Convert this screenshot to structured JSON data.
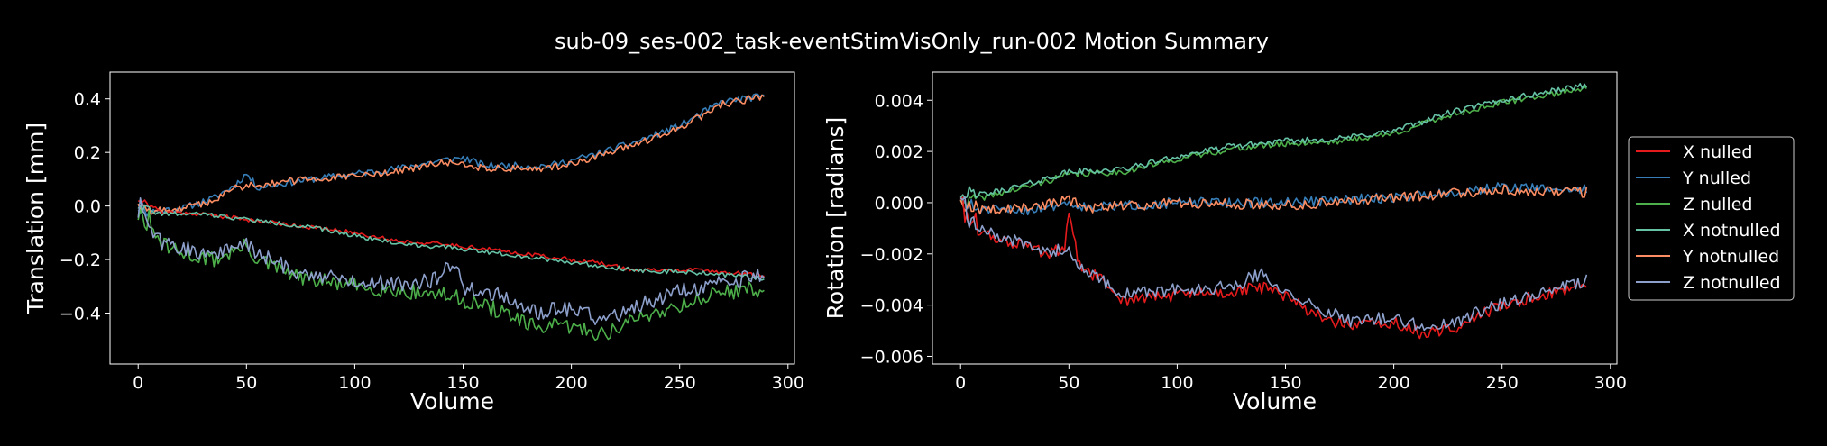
{
  "title": "sub-09_ses-002_task-eventStimVisOnly_run-002 Motion Summary",
  "colors": {
    "X nulled": "#e41a1c",
    "Y nulled": "#377eb8",
    "Z nulled": "#4daf4a",
    "X notnulled": "#66c2a5",
    "Y notnulled": "#fc8d62",
    "Z notnulled": "#8da0cb"
  },
  "chart_data": [
    {
      "type": "line",
      "xlabel": "Volume",
      "ylabel": "Translation [mm]",
      "xlim": [
        -13,
        303
      ],
      "ylim": [
        -0.59,
        0.5
      ],
      "xticks": [
        0,
        50,
        100,
        150,
        200,
        250,
        300
      ],
      "yticks": [
        -0.4,
        -0.2,
        0.0,
        0.2,
        0.4
      ],
      "yticklabels": [
        "−0.4",
        "−0.2",
        "0.0",
        "0.2",
        "0.4"
      ],
      "n_volumes": 290,
      "series": [
        {
          "name": "Y nulled",
          "noise": 0.013,
          "seed": 11,
          "values": [
            [
              0,
              0.0
            ],
            [
              5,
              -0.02
            ],
            [
              20,
              -0.01
            ],
            [
              35,
              0.03
            ],
            [
              45,
              0.08
            ],
            [
              50,
              0.12
            ],
            [
              55,
              0.07
            ],
            [
              80,
              0.1
            ],
            [
              100,
              0.12
            ],
            [
              120,
              0.14
            ],
            [
              140,
              0.17
            ],
            [
              150,
              0.18
            ],
            [
              160,
              0.15
            ],
            [
              190,
              0.15
            ],
            [
              210,
              0.19
            ],
            [
              230,
              0.24
            ],
            [
              250,
              0.3
            ],
            [
              270,
              0.39
            ],
            [
              289,
              0.41
            ]
          ]
        },
        {
          "name": "Y notnulled",
          "noise": 0.013,
          "seed": 12,
          "values": [
            [
              0,
              0.02
            ],
            [
              5,
              -0.02
            ],
            [
              20,
              -0.01
            ],
            [
              35,
              0.02
            ],
            [
              45,
              0.07
            ],
            [
              55,
              0.08
            ],
            [
              80,
              0.1
            ],
            [
              100,
              0.11
            ],
            [
              120,
              0.13
            ],
            [
              140,
              0.16
            ],
            [
              150,
              0.16
            ],
            [
              160,
              0.14
            ],
            [
              190,
              0.14
            ],
            [
              210,
              0.18
            ],
            [
              230,
              0.23
            ],
            [
              250,
              0.29
            ],
            [
              270,
              0.38
            ],
            [
              289,
              0.41
            ]
          ]
        },
        {
          "name": "X nulled",
          "noise": 0.008,
          "seed": 21,
          "values": [
            [
              0,
              0.03
            ],
            [
              10,
              -0.02
            ],
            [
              30,
              -0.03
            ],
            [
              50,
              -0.05
            ],
            [
              80,
              -0.08
            ],
            [
              100,
              -0.1
            ],
            [
              120,
              -0.13
            ],
            [
              150,
              -0.15
            ],
            [
              180,
              -0.18
            ],
            [
              210,
              -0.21
            ],
            [
              230,
              -0.24
            ],
            [
              260,
              -0.24
            ],
            [
              289,
              -0.26
            ]
          ]
        },
        {
          "name": "X notnulled",
          "noise": 0.008,
          "seed": 22,
          "values": [
            [
              0,
              0.0
            ],
            [
              10,
              -0.03
            ],
            [
              30,
              -0.03
            ],
            [
              50,
              -0.05
            ],
            [
              80,
              -0.08
            ],
            [
              100,
              -0.11
            ],
            [
              120,
              -0.14
            ],
            [
              150,
              -0.16
            ],
            [
              180,
              -0.19
            ],
            [
              210,
              -0.22
            ],
            [
              230,
              -0.24
            ],
            [
              260,
              -0.25
            ],
            [
              289,
              -0.27
            ]
          ]
        },
        {
          "name": "Z nulled",
          "noise": 0.03,
          "seed": 31,
          "values": [
            [
              0,
              0.0
            ],
            [
              5,
              -0.08
            ],
            [
              10,
              -0.14
            ],
            [
              20,
              -0.18
            ],
            [
              35,
              -0.2
            ],
            [
              50,
              -0.15
            ],
            [
              55,
              -0.2
            ],
            [
              75,
              -0.27
            ],
            [
              100,
              -0.3
            ],
            [
              125,
              -0.32
            ],
            [
              140,
              -0.33
            ],
            [
              150,
              -0.35
            ],
            [
              170,
              -0.4
            ],
            [
              180,
              -0.45
            ],
            [
              200,
              -0.45
            ],
            [
              215,
              -0.48
            ],
            [
              230,
              -0.42
            ],
            [
              250,
              -0.37
            ],
            [
              270,
              -0.32
            ],
            [
              289,
              -0.31
            ]
          ]
        },
        {
          "name": "Z notnulled",
          "noise": 0.03,
          "seed": 32,
          "values": [
            [
              0,
              0.0
            ],
            [
              5,
              -0.08
            ],
            [
              10,
              -0.13
            ],
            [
              20,
              -0.16
            ],
            [
              35,
              -0.18
            ],
            [
              50,
              -0.14
            ],
            [
              55,
              -0.18
            ],
            [
              75,
              -0.25
            ],
            [
              100,
              -0.28
            ],
            [
              125,
              -0.29
            ],
            [
              140,
              -0.27
            ],
            [
              145,
              -0.2
            ],
            [
              150,
              -0.3
            ],
            [
              170,
              -0.34
            ],
            [
              180,
              -0.4
            ],
            [
              200,
              -0.38
            ],
            [
              215,
              -0.43
            ],
            [
              230,
              -0.37
            ],
            [
              250,
              -0.32
            ],
            [
              270,
              -0.29
            ],
            [
              289,
              -0.25
            ]
          ]
        }
      ]
    },
    {
      "type": "line",
      "xlabel": "Volume",
      "ylabel": "Rotation [radians]",
      "xlim": [
        -13,
        303
      ],
      "ylim": [
        -0.0063,
        0.0051
      ],
      "xticks": [
        0,
        50,
        100,
        150,
        200,
        250,
        300
      ],
      "yticks": [
        -0.006,
        -0.004,
        -0.002,
        0.0,
        0.002,
        0.004
      ],
      "yticklabels": [
        "−0.006",
        "−0.004",
        "−0.002",
        "0.000",
        "0.002",
        "0.004"
      ],
      "n_volumes": 290,
      "series": [
        {
          "name": "Z nulled",
          "noise": 0.00012,
          "seed": 41,
          "values": [
            [
              0,
              0.0
            ],
            [
              10,
              0.0002
            ],
            [
              30,
              0.0006
            ],
            [
              50,
              0.0011
            ],
            [
              75,
              0.0012
            ],
            [
              100,
              0.0017
            ],
            [
              125,
              0.0021
            ],
            [
              150,
              0.0023
            ],
            [
              175,
              0.0024
            ],
            [
              200,
              0.0027
            ],
            [
              225,
              0.0034
            ],
            [
              250,
              0.0039
            ],
            [
              289,
              0.0045
            ]
          ]
        },
        {
          "name": "X notnulled",
          "noise": 0.00012,
          "seed": 42,
          "values": [
            [
              0,
              0.0004
            ],
            [
              10,
              0.0003
            ],
            [
              30,
              0.0007
            ],
            [
              50,
              0.0012
            ],
            [
              75,
              0.0013
            ],
            [
              100,
              0.0018
            ],
            [
              125,
              0.0022
            ],
            [
              150,
              0.0024
            ],
            [
              175,
              0.0025
            ],
            [
              200,
              0.0028
            ],
            [
              225,
              0.0035
            ],
            [
              250,
              0.004
            ],
            [
              289,
              0.0046
            ]
          ]
        },
        {
          "name": "Y nulled",
          "noise": 0.0002,
          "seed": 51,
          "values": [
            [
              0,
              0.0
            ],
            [
              10,
              -0.0003
            ],
            [
              30,
              -0.0003
            ],
            [
              50,
              0.0
            ],
            [
              60,
              -0.0002
            ],
            [
              100,
              0.0
            ],
            [
              150,
              0.0
            ],
            [
              200,
              0.0002
            ],
            [
              250,
              0.0006
            ],
            [
              289,
              0.0005
            ]
          ]
        },
        {
          "name": "Y notnulled",
          "noise": 0.0002,
          "seed": 52,
          "values": [
            [
              0,
              -0.0001
            ],
            [
              10,
              -0.0003
            ],
            [
              30,
              -0.0002
            ],
            [
              50,
              0.0001
            ],
            [
              60,
              -0.0002
            ],
            [
              100,
              0.0
            ],
            [
              150,
              -0.0001
            ],
            [
              200,
              0.0002
            ],
            [
              250,
              0.0005
            ],
            [
              289,
              0.0004
            ]
          ]
        },
        {
          "name": "X nulled",
          "noise": 0.00025,
          "seed": 61,
          "values": [
            [
              0,
              0.0
            ],
            [
              5,
              -0.0008
            ],
            [
              10,
              -0.0012
            ],
            [
              20,
              -0.0015
            ],
            [
              30,
              -0.0017
            ],
            [
              40,
              -0.002
            ],
            [
              48,
              -0.0018
            ],
            [
              50,
              -0.0005
            ],
            [
              55,
              -0.0025
            ],
            [
              65,
              -0.003
            ],
            [
              75,
              -0.0038
            ],
            [
              100,
              -0.0036
            ],
            [
              125,
              -0.0035
            ],
            [
              140,
              -0.0033
            ],
            [
              150,
              -0.0037
            ],
            [
              170,
              -0.0046
            ],
            [
              180,
              -0.0048
            ],
            [
              200,
              -0.0047
            ],
            [
              215,
              -0.0052
            ],
            [
              230,
              -0.0048
            ],
            [
              250,
              -0.004
            ],
            [
              270,
              -0.0036
            ],
            [
              289,
              -0.0031
            ]
          ]
        },
        {
          "name": "Z notnulled",
          "noise": 0.00025,
          "seed": 62,
          "values": [
            [
              0,
              0.0
            ],
            [
              5,
              -0.0006
            ],
            [
              10,
              -0.0011
            ],
            [
              20,
              -0.0014
            ],
            [
              30,
              -0.0016
            ],
            [
              40,
              -0.0019
            ],
            [
              48,
              -0.0018
            ],
            [
              55,
              -0.0024
            ],
            [
              65,
              -0.003
            ],
            [
              75,
              -0.0036
            ],
            [
              100,
              -0.0034
            ],
            [
              125,
              -0.0033
            ],
            [
              140,
              -0.0027
            ],
            [
              150,
              -0.0036
            ],
            [
              170,
              -0.0043
            ],
            [
              180,
              -0.0046
            ],
            [
              200,
              -0.0045
            ],
            [
              215,
              -0.0049
            ],
            [
              230,
              -0.0046
            ],
            [
              250,
              -0.0039
            ],
            [
              270,
              -0.0035
            ],
            [
              289,
              -0.003
            ]
          ]
        }
      ]
    }
  ],
  "legend": {
    "placement": "right",
    "entries": [
      "X nulled",
      "Y nulled",
      "Z nulled",
      "X notnulled",
      "Y notnulled",
      "Z notnulled"
    ]
  }
}
